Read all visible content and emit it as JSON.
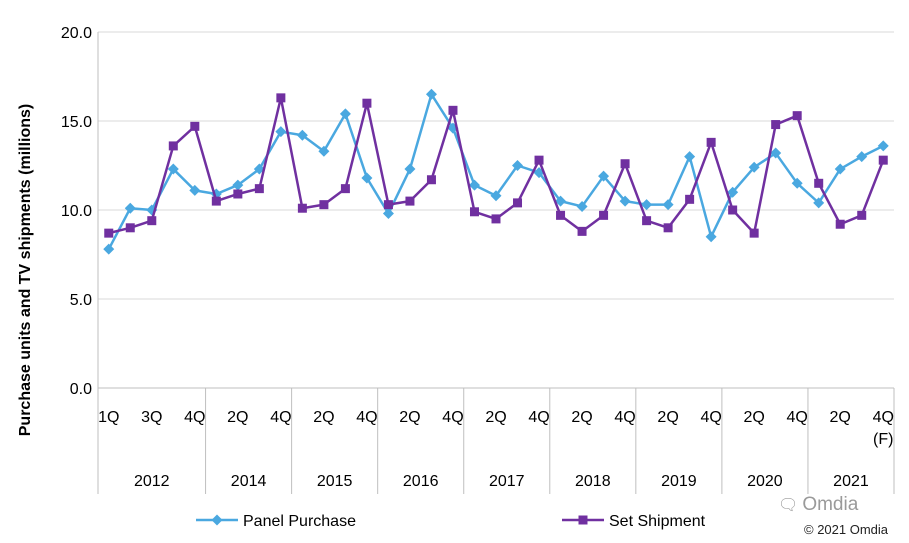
{
  "chart_data": {
    "type": "line",
    "title": "",
    "ylabel": "Purchase units and TV shipments (millions)",
    "xlabel": "",
    "ylim": [
      0,
      20
    ],
    "yticks": [
      "0.0",
      "5.0",
      "10.0",
      "15.0",
      "20.0"
    ],
    "grid": true,
    "legend_position": "bottom",
    "quarter_labels": [
      "1Q",
      "3Q",
      "4Q",
      "2Q",
      "4Q",
      "2Q",
      "4Q",
      "2Q",
      "4Q",
      "2Q",
      "4Q",
      "2Q",
      "4Q",
      "2Q",
      "4Q",
      "2Q",
      "4Q",
      "2Q",
      "4Q"
    ],
    "forecast_marker": "(F)",
    "years": [
      "2012",
      "2014",
      "2015",
      "2016",
      "2017",
      "2018",
      "2019",
      "2020",
      "2021"
    ],
    "series": [
      {
        "name": "Panel Purchase",
        "color": "#4aa8e0",
        "marker": "diamond",
        "values": [
          7.8,
          10.1,
          10.0,
          12.3,
          11.1,
          10.9,
          11.4,
          12.3,
          14.4,
          14.2,
          13.3,
          15.4,
          11.8,
          9.8,
          12.3,
          16.5,
          14.6,
          11.4,
          10.8,
          12.5,
          12.1,
          10.5,
          10.2,
          11.9,
          10.5,
          10.3,
          10.3,
          13.0,
          8.5,
          11.0,
          12.4,
          13.2,
          11.5,
          10.4,
          12.3,
          13.0,
          13.6
        ]
      },
      {
        "name": "Set Shipment",
        "color": "#7030a0",
        "marker": "square",
        "values": [
          8.7,
          9.0,
          9.4,
          13.6,
          14.7,
          10.5,
          10.9,
          11.2,
          16.3,
          10.1,
          10.3,
          11.2,
          16.0,
          10.3,
          10.5,
          11.7,
          15.6,
          9.9,
          9.5,
          10.4,
          12.8,
          9.7,
          8.8,
          9.7,
          12.6,
          9.4,
          9.0,
          10.6,
          13.8,
          10.0,
          8.7,
          14.8,
          15.3,
          11.5,
          9.2,
          9.7,
          12.8
        ]
      }
    ]
  },
  "watermark": "Omdia",
  "credit": "© 2021 Omdia"
}
